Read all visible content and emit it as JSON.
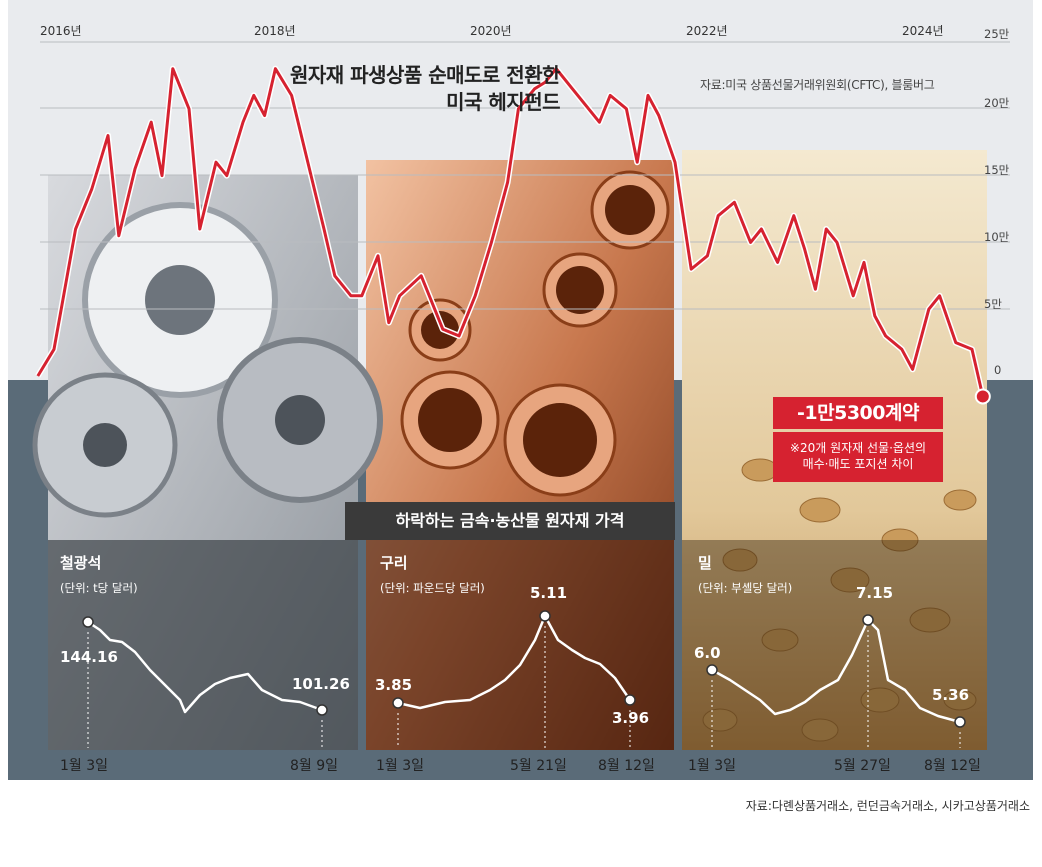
{
  "main_chart": {
    "title_line1": "원자재 파생상품 순매도로 전환한",
    "title_line2": "미국 헤지펀드",
    "source": "자료:미국 상품선물거래위원회(CFTC), 블룸버그",
    "callout": "-1만5300계약",
    "note_line1": "※20개 원자재 선물·옵션의",
    "note_line2": "매수·매도 포지션 차이",
    "line_color": "#d62230"
  },
  "subtitle": "하락하는 금속·농산물 원자재 가격",
  "bottom_source": "자료:다롄상품거래소, 런던금속거래소, 시카고상품거래소",
  "panels": [
    {
      "name": "철광석",
      "unit": "(단위: t당 달러)",
      "start_value": "144.16",
      "end_value": "101.26",
      "start_date": "1월 3일",
      "end_date": "8월 9일"
    },
    {
      "name": "구리",
      "unit": "(단위: 파운드당 달러)",
      "start_value": "3.85",
      "peak_value": "5.11",
      "end_value": "3.96",
      "start_date": "1월 3일",
      "peak_date": "5월 21일",
      "end_date": "8월 12일"
    },
    {
      "name": "밀",
      "unit": "(단위: 부셸당 달러)",
      "start_value": "6.0",
      "peak_value": "7.15",
      "end_value": "5.36",
      "start_date": "1월 3일",
      "peak_date": "5월 27일",
      "end_date": "8월 12일"
    }
  ],
  "chart_data": [
    {
      "type": "line",
      "title": "원자재 파생상품 순매도로 전환한 미국 헤지펀드",
      "x_tick_labels": [
        "2016년",
        "2018년",
        "2020년",
        "2022년",
        "2024년"
      ],
      "y_tick_labels": [
        "25만",
        "20만",
        "15만",
        "10만",
        "5만",
        "0"
      ],
      "ylim": [
        0,
        250000
      ],
      "series": [
        {
          "x": [
            2015.85,
            2016.0,
            2016.2,
            2016.35,
            2016.5,
            2016.6,
            2016.75,
            2016.9,
            2017.0,
            2017.1,
            2017.25,
            2017.35,
            2017.5,
            2017.6,
            2017.75,
            2017.85,
            2017.95,
            2018.05,
            2018.2,
            2018.35,
            2018.5,
            2018.6,
            2018.75,
            2018.85,
            2019.0,
            2019.1,
            2019.2,
            2019.4,
            2019.6,
            2019.75,
            2019.9,
            2020.05,
            2020.2,
            2020.3,
            2020.45,
            2020.55,
            2020.65,
            2020.8,
            2020.95,
            2021.05,
            2021.15,
            2021.3,
            2021.4,
            2021.5,
            2021.6,
            2021.75,
            2021.9,
            2022.05,
            2022.15,
            2022.3,
            2022.45,
            2022.55,
            2022.7,
            2022.85,
            2022.95,
            2023.05,
            2023.15,
            2023.25,
            2023.4,
            2023.5,
            2023.6,
            2023.7,
            2023.85,
            2023.95,
            2024.1,
            2024.2,
            2024.35,
            2024.5,
            2024.6
          ],
          "y": [
            0,
            20000,
            110000,
            140000,
            180000,
            105000,
            155000,
            190000,
            150000,
            230000,
            200000,
            110000,
            160000,
            150000,
            190000,
            210000,
            195000,
            230000,
            210000,
            160000,
            110000,
            75000,
            60000,
            60000,
            90000,
            40000,
            60000,
            75000,
            35000,
            30000,
            60000,
            100000,
            145000,
            200000,
            215000,
            220000,
            230000,
            215000,
            200000,
            190000,
            210000,
            200000,
            160000,
            210000,
            195000,
            160000,
            80000,
            90000,
            120000,
            130000,
            100000,
            110000,
            85000,
            120000,
            95000,
            65000,
            110000,
            100000,
            60000,
            85000,
            45000,
            30000,
            20000,
            5000,
            50000,
            60000,
            25000,
            20000,
            -15300
          ]
        }
      ]
    },
    {
      "type": "line",
      "title": "철광석",
      "x_labels": [
        "1월 3일",
        "8월 9일"
      ],
      "points": [
        {
          "label": "1월 3일",
          "value": 144.16
        },
        {
          "label": "8월 9일",
          "value": 101.26
        }
      ]
    },
    {
      "type": "line",
      "title": "구리",
      "x_labels": [
        "1월 3일",
        "5월 21일",
        "8월 12일"
      ],
      "points": [
        {
          "label": "1월 3일",
          "value": 3.85
        },
        {
          "label": "5월 21일",
          "value": 5.11
        },
        {
          "label": "8월 12일",
          "value": 3.96
        }
      ]
    },
    {
      "type": "line",
      "title": "밀",
      "x_labels": [
        "1월 3일",
        "5월 27일",
        "8월 12일"
      ],
      "points": [
        {
          "label": "1월 3일",
          "value": 6.0
        },
        {
          "label": "5월 27일",
          "value": 7.15
        },
        {
          "label": "8월 12일",
          "value": 5.36
        }
      ]
    }
  ]
}
